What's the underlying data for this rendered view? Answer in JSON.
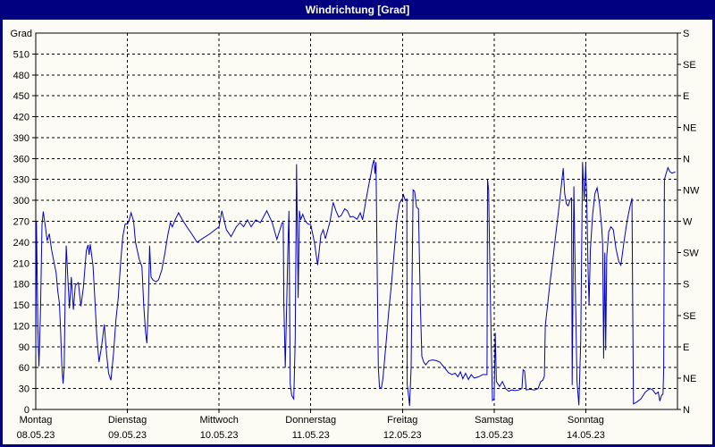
{
  "window": {
    "title": "Windrichtung [Grad]"
  },
  "colors": {
    "frame": "#000080",
    "titlebar_bg": "#000080",
    "titlebar_text": "#ffffff",
    "chart_bg": "#fcfcf4",
    "axis": "#000000",
    "grid": "#000000",
    "line": "#0000c8"
  },
  "chart_data": {
    "type": "line",
    "title": "Windrichtung [Grad]",
    "ylabel_left": "Grad",
    "ylim": [
      0,
      540
    ],
    "y_left_tick_step": 30,
    "y_left_ticks": [
      0,
      30,
      60,
      90,
      120,
      150,
      180,
      210,
      240,
      270,
      300,
      330,
      360,
      390,
      420,
      450,
      480,
      510
    ],
    "y_right_ticks": [
      {
        "deg": 540,
        "label": "S"
      },
      {
        "deg": 495,
        "label": "SE"
      },
      {
        "deg": 450,
        "label": "E"
      },
      {
        "deg": 405,
        "label": "NE"
      },
      {
        "deg": 360,
        "label": "N"
      },
      {
        "deg": 315,
        "label": "NW"
      },
      {
        "deg": 270,
        "label": "W"
      },
      {
        "deg": 225,
        "label": "SW"
      },
      {
        "deg": 180,
        "label": "S"
      },
      {
        "deg": 135,
        "label": "SE"
      },
      {
        "deg": 90,
        "label": "E"
      },
      {
        "deg": 45,
        "label": "NE"
      },
      {
        "deg": 0,
        "label": "N"
      }
    ],
    "x_days": [
      {
        "label": "Montag",
        "date": "08.05.23"
      },
      {
        "label": "Dienstag",
        "date": "09.05.23"
      },
      {
        "label": "Mittwoch",
        "date": "10.05.23"
      },
      {
        "label": "Donnerstag",
        "date": "11.05.23"
      },
      {
        "label": "Freitag",
        "date": "12.05.23"
      },
      {
        "label": "Samstag",
        "date": "13.05.23"
      },
      {
        "label": "Sonntag",
        "date": "14.05.23"
      }
    ],
    "x_range_days": [
      0,
      7
    ],
    "grid": "dashed",
    "legend": "none",
    "series": [
      {
        "name": "Windrichtung",
        "unit": "Grad",
        "points": [
          [
            0.0,
            78
          ],
          [
            0.008,
            270
          ],
          [
            0.022,
            120
          ],
          [
            0.035,
            62
          ],
          [
            0.052,
            140
          ],
          [
            0.068,
            265
          ],
          [
            0.082,
            284
          ],
          [
            0.105,
            262
          ],
          [
            0.125,
            242
          ],
          [
            0.148,
            252
          ],
          [
            0.172,
            230
          ],
          [
            0.198,
            212
          ],
          [
            0.222,
            196
          ],
          [
            0.24,
            170
          ],
          [
            0.258,
            152
          ],
          [
            0.272,
            110
          ],
          [
            0.285,
            62
          ],
          [
            0.298,
            37
          ],
          [
            0.31,
            60
          ],
          [
            0.322,
            170
          ],
          [
            0.332,
            235
          ],
          [
            0.35,
            188
          ],
          [
            0.368,
            145
          ],
          [
            0.388,
            190
          ],
          [
            0.41,
            143
          ],
          [
            0.432,
            178
          ],
          [
            0.465,
            182
          ],
          [
            0.492,
            148
          ],
          [
            0.52,
            175
          ],
          [
            0.552,
            228
          ],
          [
            0.57,
            236
          ],
          [
            0.582,
            222
          ],
          [
            0.595,
            237
          ],
          [
            0.625,
            206
          ],
          [
            0.648,
            150
          ],
          [
            0.665,
            107
          ],
          [
            0.69,
            68
          ],
          [
            0.718,
            90
          ],
          [
            0.748,
            122
          ],
          [
            0.772,
            80
          ],
          [
            0.795,
            52
          ],
          [
            0.82,
            42
          ],
          [
            0.848,
            80
          ],
          [
            0.875,
            130
          ],
          [
            0.9,
            160
          ],
          [
            0.925,
            210
          ],
          [
            0.95,
            248
          ],
          [
            0.975,
            266
          ],
          [
            1.0,
            266
          ],
          [
            1.02,
            272
          ],
          [
            1.04,
            282
          ],
          [
            1.068,
            270
          ],
          [
            1.088,
            240
          ],
          [
            1.108,
            228
          ],
          [
            1.13,
            215
          ],
          [
            1.158,
            205
          ],
          [
            1.178,
            150
          ],
          [
            1.198,
            110
          ],
          [
            1.212,
            95
          ],
          [
            1.228,
            150
          ],
          [
            1.242,
            235
          ],
          [
            1.258,
            190
          ],
          [
            1.278,
            186
          ],
          [
            1.31,
            183
          ],
          [
            1.34,
            186
          ],
          [
            1.375,
            200
          ],
          [
            1.41,
            225
          ],
          [
            1.44,
            250
          ],
          [
            1.468,
            268
          ],
          [
            1.49,
            262
          ],
          [
            1.52,
            272
          ],
          [
            1.558,
            282
          ],
          [
            1.6,
            272
          ],
          [
            1.648,
            262
          ],
          [
            1.7,
            252
          ],
          [
            1.76,
            240
          ],
          [
            1.828,
            246
          ],
          [
            1.9,
            252
          ],
          [
            1.958,
            258
          ],
          [
            2.0,
            262
          ],
          [
            2.03,
            285
          ],
          [
            2.08,
            258
          ],
          [
            2.13,
            248
          ],
          [
            2.188,
            262
          ],
          [
            2.228,
            268
          ],
          [
            2.268,
            262
          ],
          [
            2.31,
            272
          ],
          [
            2.35,
            262
          ],
          [
            2.4,
            272
          ],
          [
            2.45,
            268
          ],
          [
            2.52,
            285
          ],
          [
            2.58,
            268
          ],
          [
            2.63,
            244
          ],
          [
            2.688,
            268
          ],
          [
            2.7,
            268
          ],
          [
            2.706,
            152
          ],
          [
            2.722,
            60
          ],
          [
            2.752,
            240
          ],
          [
            2.762,
            285
          ],
          [
            2.776,
            37
          ],
          [
            2.792,
            20
          ],
          [
            2.815,
            15
          ],
          [
            2.83,
            100
          ],
          [
            2.845,
            352
          ],
          [
            2.862,
            160
          ],
          [
            2.876,
            285
          ],
          [
            2.89,
            272
          ],
          [
            2.912,
            280
          ],
          [
            2.94,
            270
          ],
          [
            2.97,
            266
          ],
          [
            3.0,
            265
          ],
          [
            3.04,
            240
          ],
          [
            3.075,
            207
          ],
          [
            3.11,
            250
          ],
          [
            3.135,
            258
          ],
          [
            3.16,
            245
          ],
          [
            3.21,
            270
          ],
          [
            3.245,
            297
          ],
          [
            3.275,
            285
          ],
          [
            3.305,
            276
          ],
          [
            3.33,
            278
          ],
          [
            3.37,
            288
          ],
          [
            3.4,
            285
          ],
          [
            3.43,
            276
          ],
          [
            3.46,
            277
          ],
          [
            3.505,
            273
          ],
          [
            3.54,
            282
          ],
          [
            3.565,
            272
          ],
          [
            3.6,
            299
          ],
          [
            3.63,
            320
          ],
          [
            3.66,
            340
          ],
          [
            3.675,
            352
          ],
          [
            3.69,
            358
          ],
          [
            3.7,
            338
          ],
          [
            3.712,
            355
          ],
          [
            3.725,
            190
          ],
          [
            3.737,
            60
          ],
          [
            3.75,
            32
          ],
          [
            3.77,
            30
          ],
          [
            3.788,
            45
          ],
          [
            3.818,
            90
          ],
          [
            3.85,
            140
          ],
          [
            3.88,
            180
          ],
          [
            3.912,
            230
          ],
          [
            3.94,
            272
          ],
          [
            3.968,
            296
          ],
          [
            3.988,
            300
          ],
          [
            4.0,
            303
          ],
          [
            4.012,
            308
          ],
          [
            4.03,
            300
          ],
          [
            4.048,
            302
          ],
          [
            4.052,
            36
          ],
          [
            4.066,
            20
          ],
          [
            4.078,
            5
          ],
          [
            4.095,
            60
          ],
          [
            4.116,
            315
          ],
          [
            4.133,
            313
          ],
          [
            4.154,
            290
          ],
          [
            4.175,
            288
          ],
          [
            4.195,
            152
          ],
          [
            4.212,
            76
          ],
          [
            4.232,
            68
          ],
          [
            4.255,
            64
          ],
          [
            4.29,
            70
          ],
          [
            4.33,
            71
          ],
          [
            4.37,
            70
          ],
          [
            4.408,
            68
          ],
          [
            4.458,
            60
          ],
          [
            4.5,
            53
          ],
          [
            4.54,
            50
          ],
          [
            4.575,
            52
          ],
          [
            4.605,
            47
          ],
          [
            4.633,
            54
          ],
          [
            4.658,
            44
          ],
          [
            4.688,
            52
          ],
          [
            4.72,
            43
          ],
          [
            4.75,
            50
          ],
          [
            4.783,
            45
          ],
          [
            4.833,
            47
          ],
          [
            4.875,
            50
          ],
          [
            4.922,
            50
          ],
          [
            4.928,
            330
          ],
          [
            4.94,
            315
          ],
          [
            4.953,
            210
          ],
          [
            4.966,
            110
          ],
          [
            4.982,
            13
          ],
          [
            5.0,
            15
          ],
          [
            5.012,
            110
          ],
          [
            5.025,
            40
          ],
          [
            5.06,
            33
          ],
          [
            5.09,
            40
          ],
          [
            5.125,
            30
          ],
          [
            5.158,
            26
          ],
          [
            5.19,
            28
          ],
          [
            5.23,
            27
          ],
          [
            5.27,
            28
          ],
          [
            5.304,
            30
          ],
          [
            5.316,
            57
          ],
          [
            5.333,
            55
          ],
          [
            5.35,
            28
          ],
          [
            5.395,
            29
          ],
          [
            5.44,
            28
          ],
          [
            5.48,
            30
          ],
          [
            5.508,
            40
          ],
          [
            5.532,
            42
          ],
          [
            5.548,
            48
          ],
          [
            5.558,
            120
          ],
          [
            5.583,
            150
          ],
          [
            5.608,
            180
          ],
          [
            5.636,
            210
          ],
          [
            5.662,
            240
          ],
          [
            5.69,
            270
          ],
          [
            5.716,
            300
          ],
          [
            5.74,
            330
          ],
          [
            5.754,
            346
          ],
          [
            5.77,
            310
          ],
          [
            5.788,
            295
          ],
          [
            5.808,
            292
          ],
          [
            5.828,
            300
          ],
          [
            5.845,
            304
          ],
          [
            5.852,
            35
          ],
          [
            5.87,
            320
          ],
          [
            5.89,
            150
          ],
          [
            5.904,
            40
          ],
          [
            5.925,
            6
          ],
          [
            5.945,
            100
          ],
          [
            5.965,
            355
          ],
          [
            5.982,
            300
          ],
          [
            6.0,
            352
          ],
          [
            6.012,
            290
          ],
          [
            6.024,
            205
          ],
          [
            6.036,
            150
          ],
          [
            6.05,
            230
          ],
          [
            6.075,
            280
          ],
          [
            6.1,
            310
          ],
          [
            6.124,
            318
          ],
          [
            6.15,
            295
          ],
          [
            6.174,
            260
          ],
          [
            6.184,
            238
          ],
          [
            6.195,
            73
          ],
          [
            6.207,
            225
          ],
          [
            6.217,
            85
          ],
          [
            6.229,
            220
          ],
          [
            6.25,
            255
          ],
          [
            6.275,
            262
          ],
          [
            6.3,
            258
          ],
          [
            6.33,
            230
          ],
          [
            6.36,
            212
          ],
          [
            6.383,
            207
          ],
          [
            6.416,
            240
          ],
          [
            6.45,
            270
          ],
          [
            6.48,
            290
          ],
          [
            6.504,
            303
          ],
          [
            6.512,
            150
          ],
          [
            6.52,
            8
          ],
          [
            6.55,
            10
          ],
          [
            6.6,
            15
          ],
          [
            6.65,
            25
          ],
          [
            6.7,
            30
          ],
          [
            6.73,
            28
          ],
          [
            6.762,
            22
          ],
          [
            6.79,
            25
          ],
          [
            6.808,
            12
          ],
          [
            6.825,
            20
          ],
          [
            6.842,
            22
          ],
          [
            6.85,
            57
          ],
          [
            6.858,
            330
          ],
          [
            6.875,
            338
          ],
          [
            6.896,
            347
          ],
          [
            6.917,
            341
          ],
          [
            6.94,
            339
          ],
          [
            6.962,
            340
          ],
          [
            6.978,
            341
          ]
        ]
      }
    ]
  }
}
